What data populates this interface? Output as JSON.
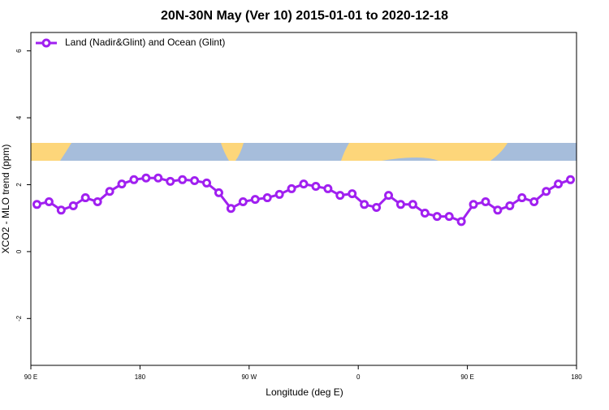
{
  "chart_data": {
    "type": "line",
    "title": "20N-30N May (Ver 10)   2015-01-01 to 2020-12-18",
    "x_label": "Longitude (deg E)",
    "y_label": "XCO2 - MLO trend (ppm)",
    "xlim": [
      90,
      540
    ],
    "ylim": [
      -3.4,
      6.55
    ],
    "xticks": [
      {
        "value": 90,
        "label": "90 E"
      },
      {
        "value": 180,
        "label": "180"
      },
      {
        "value": 270,
        "label": "90 W"
      },
      {
        "value": 360,
        "label": "0"
      },
      {
        "value": 450,
        "label": "90 E"
      },
      {
        "value": 540,
        "label": "180"
      }
    ],
    "yticks": [
      -2,
      0,
      2,
      4,
      6
    ],
    "legend": "top-left",
    "x": [
      95,
      105,
      115,
      125,
      135,
      145,
      155,
      165,
      175,
      185,
      195,
      205,
      215,
      225,
      235,
      245,
      255,
      265,
      275,
      285,
      295,
      305,
      315,
      325,
      335,
      345,
      355,
      365,
      375,
      385,
      395,
      405,
      415,
      425,
      435,
      445,
      455,
      465,
      475,
      485,
      495,
      505,
      515,
      525,
      535
    ],
    "series": [
      {
        "name": "Land (Nadir&Glint) and Ocean (Glint)",
        "color": "#a020f0",
        "values": [
          1.41,
          1.49,
          1.24,
          1.37,
          1.61,
          1.49,
          1.8,
          2.02,
          2.15,
          2.2,
          2.2,
          2.1,
          2.15,
          2.12,
          2.05,
          1.76,
          1.29,
          1.49,
          1.56,
          1.61,
          1.71,
          1.88,
          2.02,
          1.95,
          1.88,
          1.68,
          1.73,
          1.41,
          1.32,
          1.68,
          1.41,
          1.41,
          1.15,
          1.05,
          1.05,
          0.9,
          1.41,
          1.49,
          1.24,
          1.37,
          1.61,
          1.49,
          1.8,
          2.02,
          2.15
        ]
      }
    ]
  }
}
